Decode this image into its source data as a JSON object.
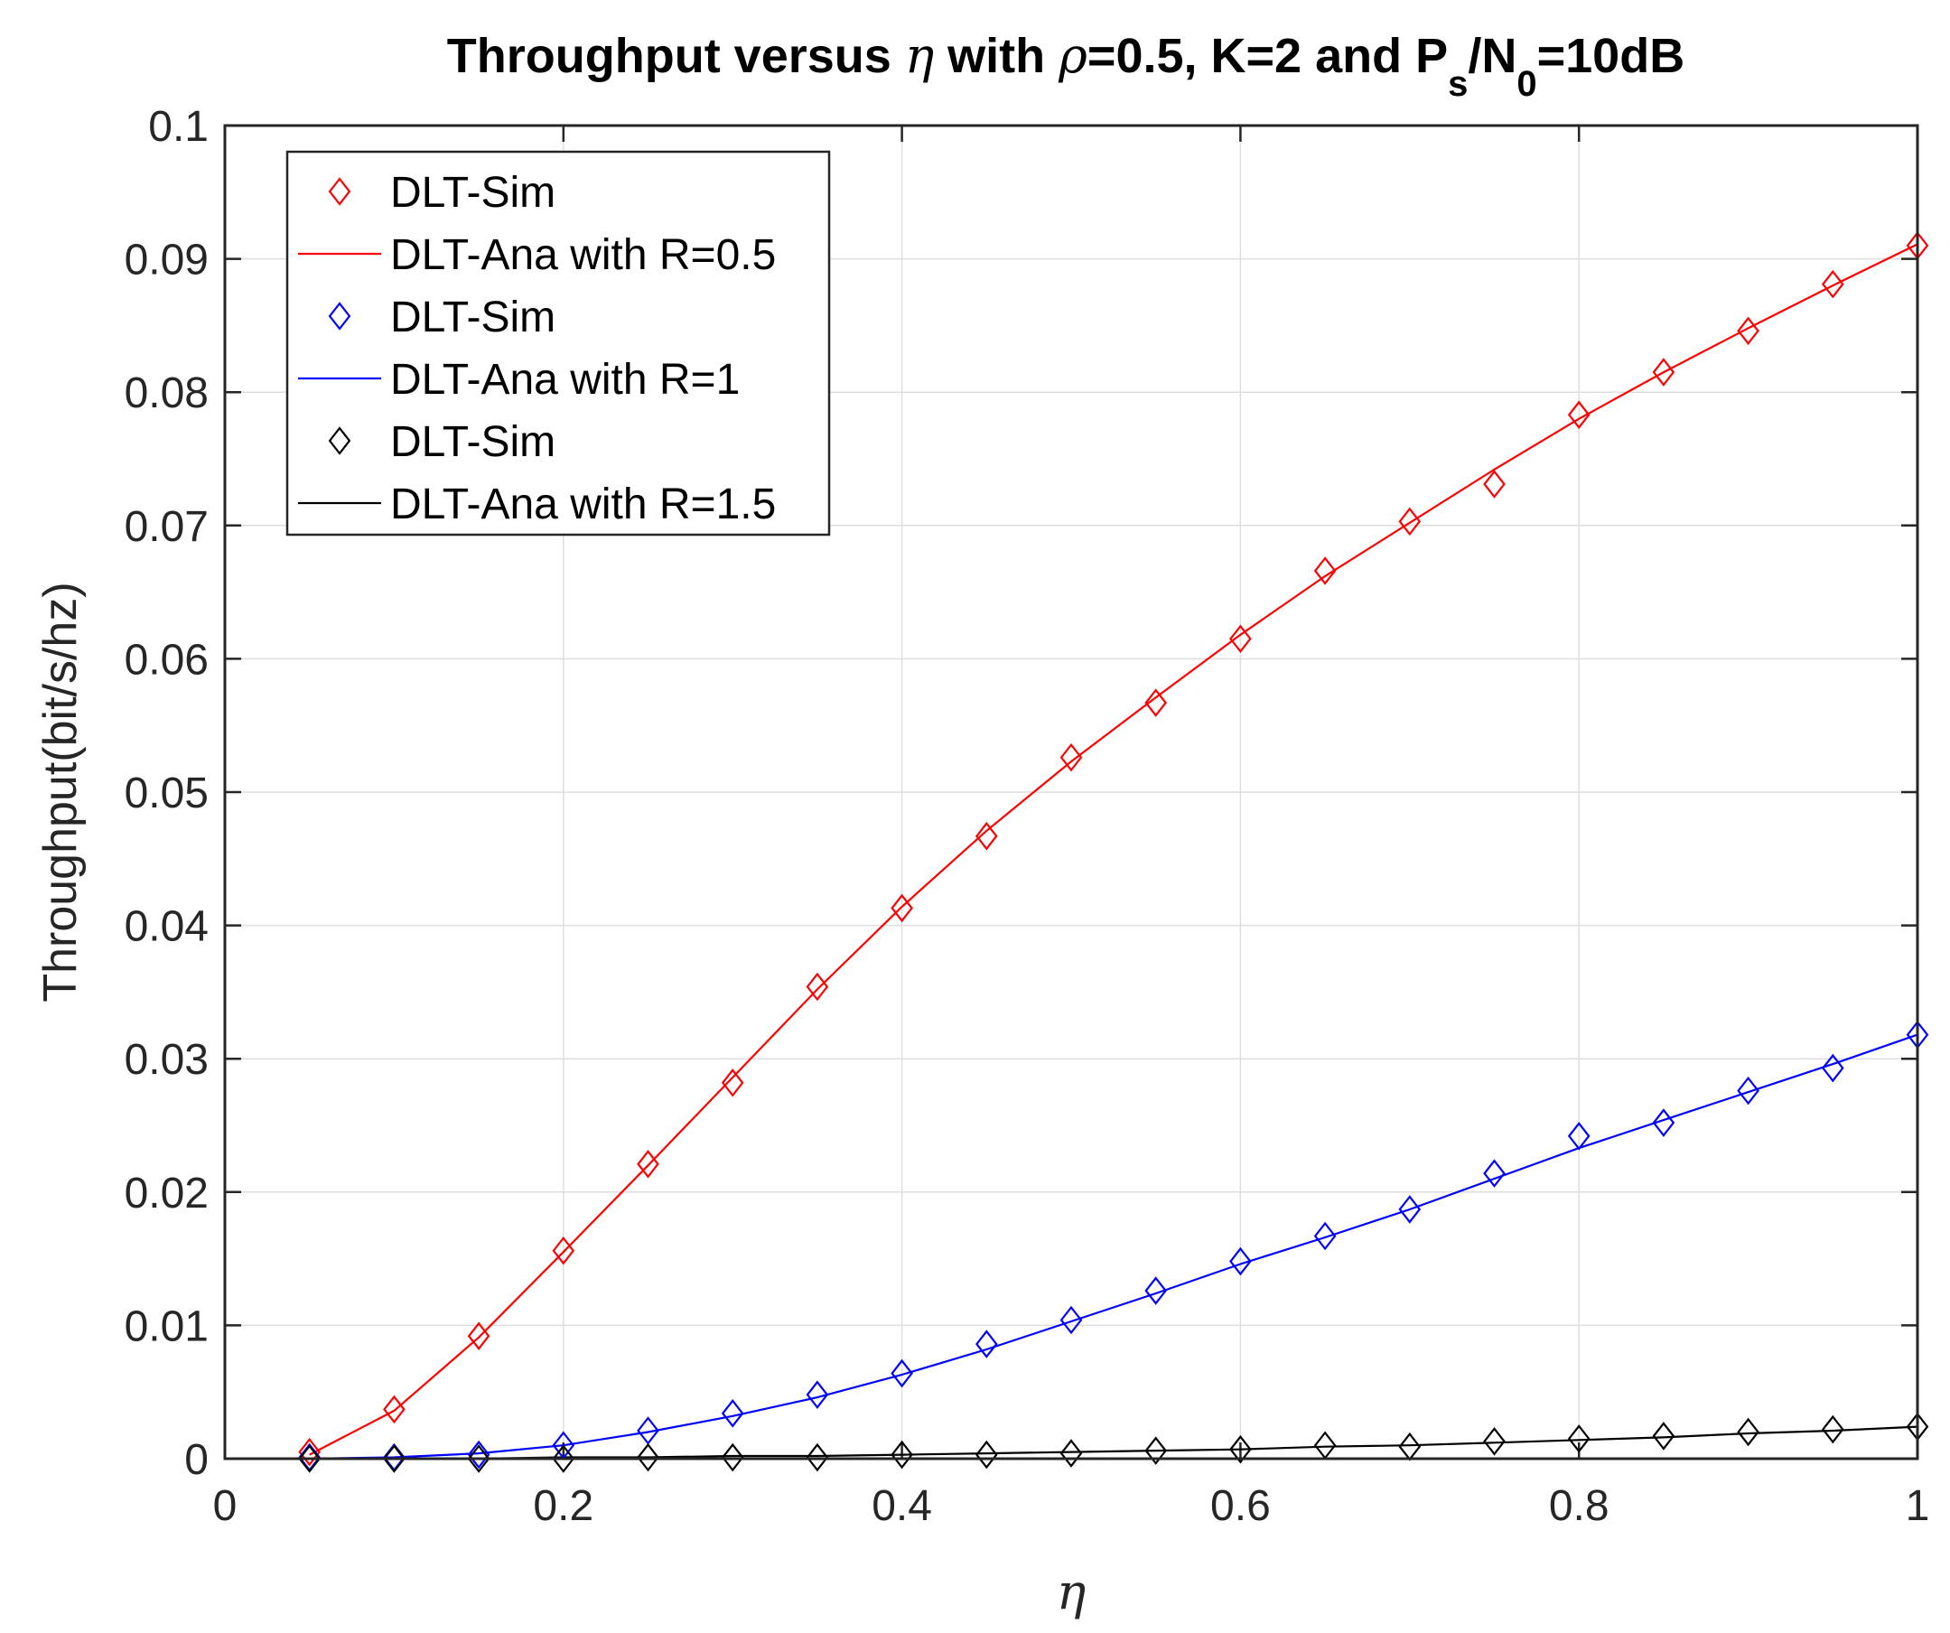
{
  "chart_data": {
    "type": "line",
    "title": {
      "prefix": "Throughput versus ",
      "eta": "η",
      "with": " with ",
      "rho": "ρ",
      "rest": "=0.5, K=2 and P",
      "sub_s": "s",
      "slash": "/N",
      "sub_0": "0",
      "tail": "=10dB"
    },
    "xlabel": "η",
    "ylabel": "Throughput(bit/s/hz)",
    "xlim": [
      0,
      1
    ],
    "ylim": [
      0,
      0.1
    ],
    "xticks": [
      0,
      0.2,
      0.4,
      0.6,
      0.8,
      1
    ],
    "xtick_labels": [
      "0",
      "0.2",
      "0.4",
      "0.6",
      "0.8",
      "1"
    ],
    "yticks": [
      0,
      0.01,
      0.02,
      0.03,
      0.04,
      0.05,
      0.06,
      0.07,
      0.08,
      0.09,
      0.1
    ],
    "ytick_labels": [
      "0",
      "0.01",
      "0.02",
      "0.03",
      "0.04",
      "0.05",
      "0.06",
      "0.07",
      "0.08",
      "0.09",
      "0.1"
    ],
    "grid": true,
    "legend_position": "top-left",
    "x": [
      0.05,
      0.1,
      0.15,
      0.2,
      0.25,
      0.3,
      0.35,
      0.4,
      0.45,
      0.5,
      0.55,
      0.6,
      0.65,
      0.7,
      0.75,
      0.8,
      0.85,
      0.9,
      0.95,
      1.0
    ],
    "series": [
      {
        "name": "DLT-Sim",
        "style": "markers",
        "color": "#ff0000",
        "values": [
          0.0005,
          0.0037,
          0.0092,
          0.0156,
          0.0221,
          0.0282,
          0.0354,
          0.0413,
          0.0467,
          0.0526,
          0.0567,
          0.0615,
          0.0666,
          0.0703,
          0.0731,
          0.0783,
          0.0815,
          0.0846,
          0.0881,
          0.091
        ]
      },
      {
        "name": "DLT-Ana with R=0.5",
        "style": "line",
        "color": "#ff0000",
        "values": [
          0.0003,
          0.0036,
          0.0091,
          0.0155,
          0.022,
          0.0286,
          0.0352,
          0.0414,
          0.0471,
          0.0523,
          0.0571,
          0.0618,
          0.0662,
          0.0702,
          0.0742,
          0.078,
          0.0815,
          0.0848,
          0.088,
          0.0911
        ]
      },
      {
        "name": "DLT-Sim",
        "style": "markers",
        "color": "#0000ff",
        "values": [
          0.0001,
          0.0001,
          0.0003,
          0.001,
          0.0021,
          0.0034,
          0.0048,
          0.0064,
          0.0086,
          0.0104,
          0.0126,
          0.0148,
          0.0167,
          0.0187,
          0.0214,
          0.0242,
          0.0252,
          0.0276,
          0.0293,
          0.0318
        ]
      },
      {
        "name": "DLT-Ana with R=1",
        "style": "line",
        "color": "#0000ff",
        "values": [
          0.0,
          0.0001,
          0.0004,
          0.001,
          0.002,
          0.0032,
          0.0046,
          0.0063,
          0.0082,
          0.0103,
          0.0124,
          0.0146,
          0.0166,
          0.0187,
          0.021,
          0.0233,
          0.0254,
          0.0275,
          0.0296,
          0.0318
        ]
      },
      {
        "name": "DLT-Sim",
        "style": "markers",
        "color": "#000000",
        "values": [
          0.0,
          0.0,
          0.0,
          0.0,
          0.0001,
          0.0001,
          0.0001,
          0.0003,
          0.0003,
          0.0004,
          0.0006,
          0.0007,
          0.001,
          0.0009,
          0.0013,
          0.0015,
          0.0017,
          0.002,
          0.0022,
          0.0024
        ]
      },
      {
        "name": "DLT-Ana with R=1.5",
        "style": "line",
        "color": "#000000",
        "values": [
          0.0,
          0.0,
          0.0,
          0.0001,
          0.0001,
          0.0002,
          0.0002,
          0.0003,
          0.0004,
          0.0005,
          0.0006,
          0.0007,
          0.0009,
          0.001,
          0.0012,
          0.0014,
          0.0016,
          0.0019,
          0.0021,
          0.0024
        ]
      }
    ]
  }
}
